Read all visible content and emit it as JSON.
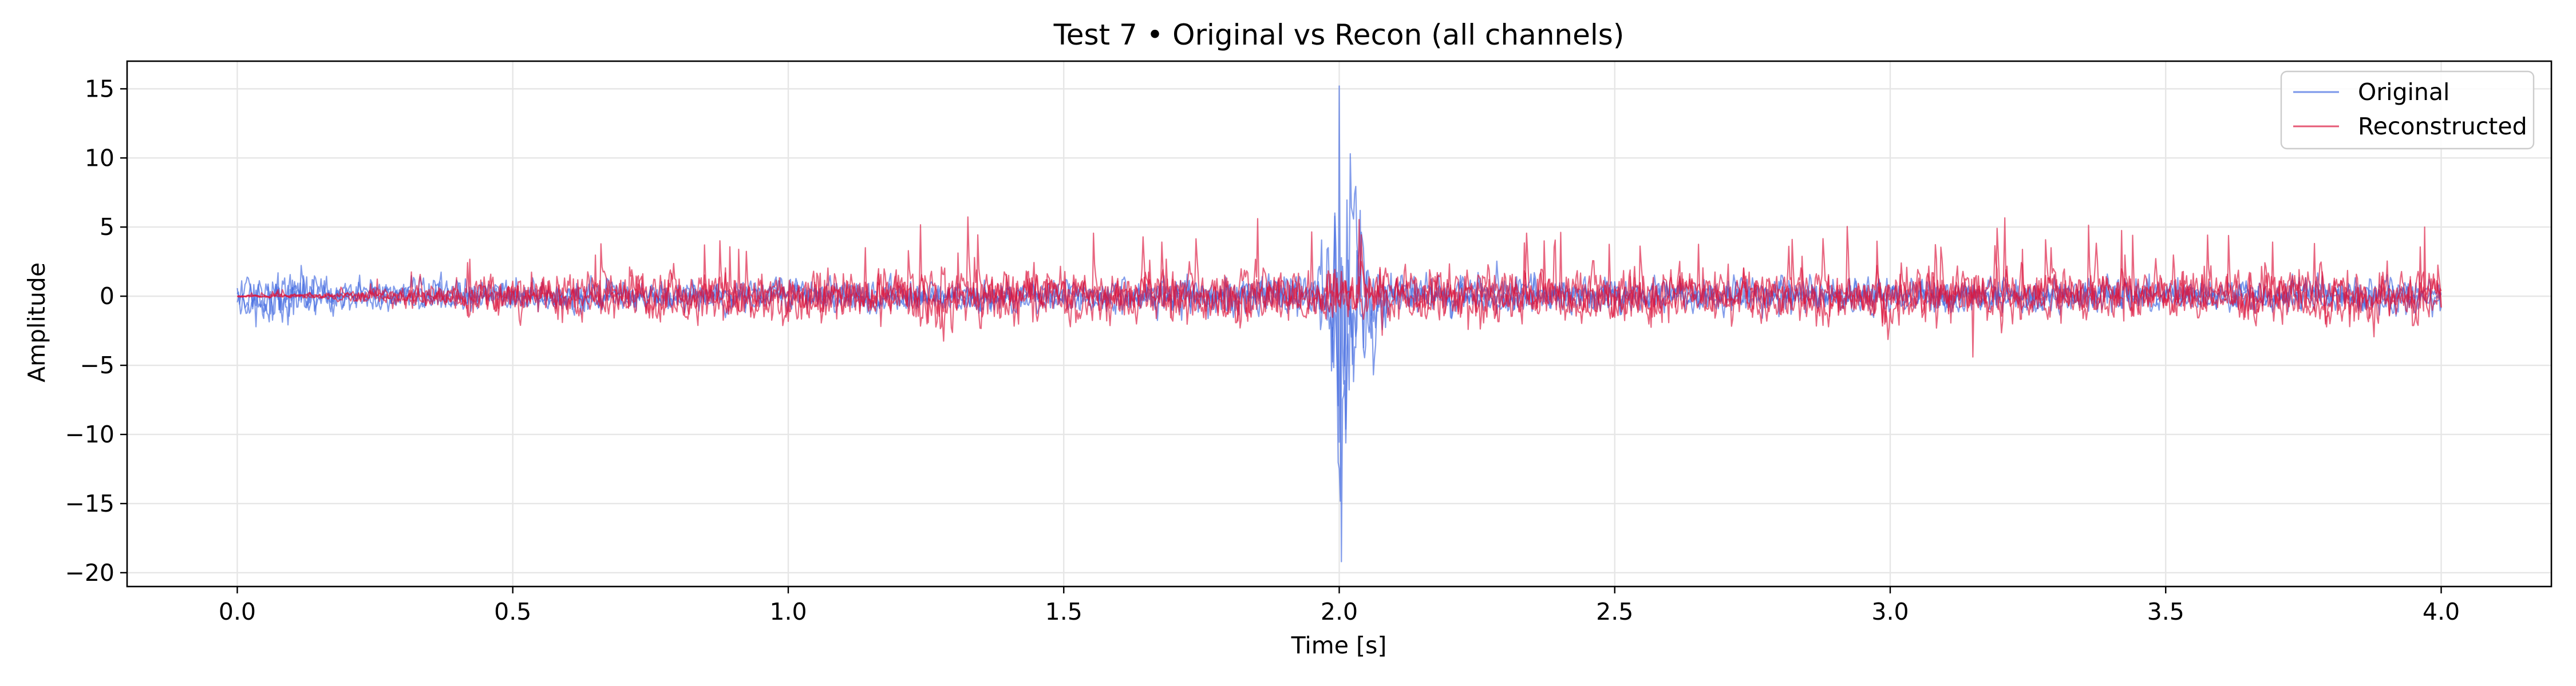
{
  "chart_data": {
    "type": "line",
    "title": "Test 7 • Original vs Recon (all channels)",
    "xlabel": "Time [s]",
    "ylabel": "Amplitude",
    "xlim": [
      -0.2,
      4.2
    ],
    "ylim": [
      -21,
      17
    ],
    "xticks": [
      0.0,
      0.5,
      1.0,
      1.5,
      2.0,
      2.5,
      3.0,
      3.5,
      4.0
    ],
    "xtick_labels": [
      "0.0",
      "0.5",
      "1.0",
      "1.5",
      "2.0",
      "2.5",
      "3.0",
      "3.5",
      "4.0"
    ],
    "yticks": [
      15,
      10,
      5,
      0,
      -5,
      -10,
      -15,
      -20
    ],
    "ytick_labels": [
      "15",
      "10",
      "5",
      "0",
      "−5",
      "−10",
      "−15",
      "−20"
    ],
    "grid": true,
    "legend_position": "top-right",
    "x_range_of_data": [
      0.0,
      4.0
    ],
    "series": [
      {
        "name": "Original",
        "color": "#4169e1",
        "description_points": {
          "time": [
            0.0,
            0.1,
            0.2,
            0.5,
            1.0,
            1.5,
            1.95,
            1.98,
            2.0,
            2.01,
            2.05,
            2.1,
            2.5,
            3.0,
            3.5,
            4.0
          ],
          "envelope": [
            2.0,
            2.4,
            1.5,
            1.5,
            1.5,
            1.5,
            2.0,
            6.0,
            17.0,
            15.0,
            6.0,
            2.2,
            1.6,
            1.6,
            1.6,
            1.6
          ]
        },
        "peak_max": 15.2,
        "peak_min": -19.2
      },
      {
        "name": "Reconstructed",
        "color": "#dc143c",
        "description_points": {
          "time": [
            0.0,
            0.2,
            0.5,
            1.0,
            1.5,
            2.0,
            2.5,
            3.0,
            3.5,
            4.0
          ],
          "envelope": [
            0.1,
            0.4,
            2.0,
            2.5,
            2.5,
            2.6,
            2.5,
            2.5,
            2.5,
            2.5
          ]
        },
        "peak_max": 5.0,
        "peak_min": -4.4
      }
    ]
  }
}
